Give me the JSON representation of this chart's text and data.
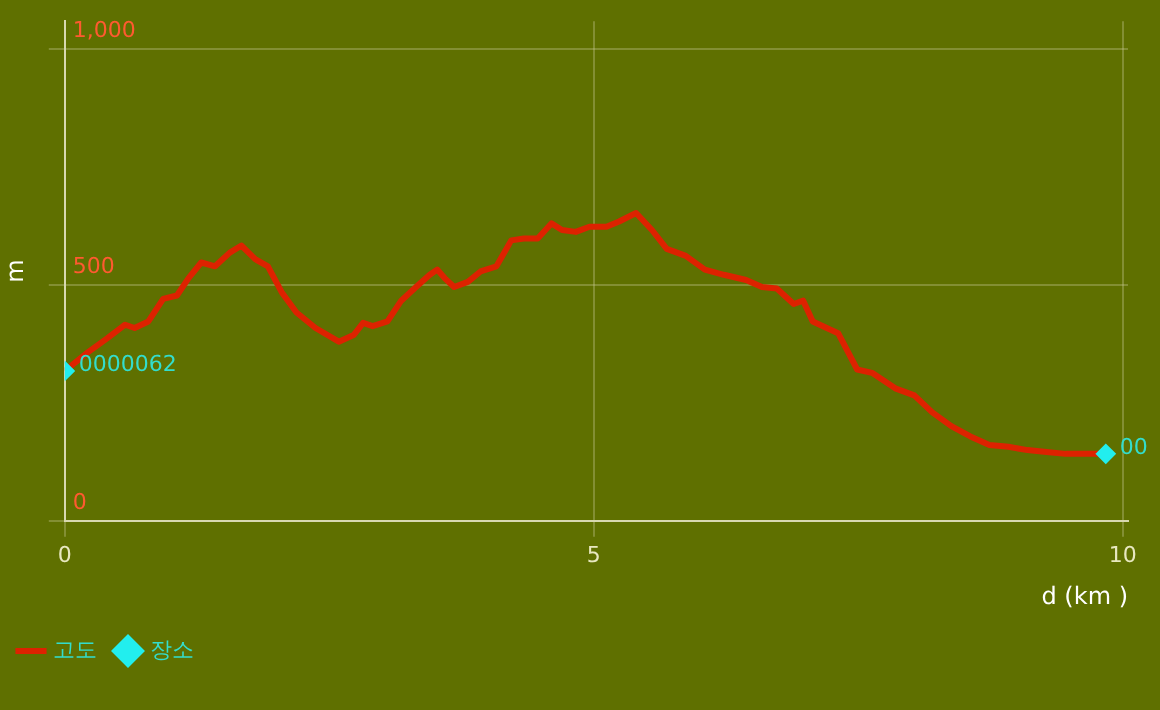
{
  "chart_data": {
    "type": "line",
    "xlabel": "d (km )",
    "ylabel": "m",
    "xlim": [
      0,
      10.05
    ],
    "ylim": [
      0,
      1060
    ],
    "xticks": [
      0,
      5,
      10
    ],
    "yticks": [
      {
        "value": 0,
        "label": "0"
      },
      {
        "value": 500,
        "label": "500"
      },
      {
        "value": 1000,
        "label": "1,000"
      }
    ],
    "grid": true,
    "legend": "bottom left",
    "marker": "none",
    "line_style": "solid",
    "annotations": [
      {
        "text": "0000062",
        "x": 0,
        "y": 318
      },
      {
        "text": "00",
        "x": 9.84,
        "y": 142
      }
    ],
    "series": [
      {
        "name": "고도",
        "color": "#dd2200",
        "x": [
          0,
          0.22,
          0.4,
          0.57,
          0.66,
          0.79,
          0.93,
          1.06,
          1.17,
          1.29,
          1.42,
          1.56,
          1.67,
          1.8,
          1.92,
          2.05,
          2.19,
          2.37,
          2.59,
          2.73,
          2.82,
          2.91,
          3.05,
          3.18,
          3.32,
          3.45,
          3.52,
          3.59,
          3.68,
          3.81,
          3.93,
          4.08,
          4.22,
          4.34,
          4.47,
          4.6,
          4.7,
          4.83,
          4.96,
          5.12,
          5.24,
          5.4,
          5.55,
          5.69,
          5.87,
          6.05,
          6.23,
          6.44,
          6.59,
          6.73,
          6.89,
          6.98,
          7.07,
          7.31,
          7.49,
          7.63,
          7.85,
          8.03,
          8.2,
          8.38,
          8.56,
          8.74,
          8.92,
          9.1,
          9.28,
          9.46,
          9.84
        ],
        "values": [
          318,
          358,
          387,
          416,
          409,
          423,
          471,
          478,
          515,
          548,
          540,
          569,
          584,
          555,
          540,
          485,
          442,
          409,
          380,
          394,
          420,
          413,
          423,
          467,
          496,
          522,
          533,
          515,
          496,
          507,
          529,
          540,
          595,
          599,
          599,
          631,
          617,
          613,
          624,
          624,
          635,
          653,
          617,
          577,
          562,
          533,
          522,
          511,
          496,
          493,
          460,
          467,
          423,
          398,
          321,
          314,
          281,
          266,
          230,
          201,
          179,
          161,
          157,
          150,
          146,
          142,
          142
        ]
      },
      {
        "name": "장소",
        "color": "#22eeee",
        "type": "scatter",
        "marker": "diamond",
        "x": [
          0,
          9.84
        ],
        "values": [
          318,
          142
        ]
      }
    ]
  }
}
